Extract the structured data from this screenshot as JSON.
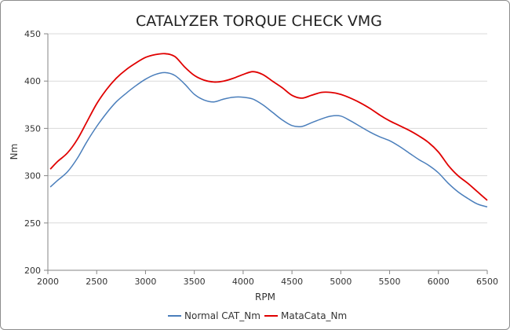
{
  "chart_data": {
    "type": "line",
    "title": "CATALYZER TORQUE CHECK VMG",
    "xlabel": "RPM",
    "ylabel": "Nm",
    "xlim": [
      2000,
      6500
    ],
    "ylim": [
      200,
      450
    ],
    "xticks": [
      2000,
      2500,
      3000,
      3500,
      4000,
      4500,
      5000,
      5500,
      6000,
      6500
    ],
    "yticks": [
      200,
      250,
      300,
      350,
      400,
      450
    ],
    "grid": "horizontal",
    "legend": "bottom",
    "series": [
      {
        "name": "Normal CAT_Nm",
        "color": "#4a7ebb",
        "x": [
          2025,
          2100,
          2200,
          2300,
          2400,
          2500,
          2600,
          2700,
          2800,
          2900,
          3000,
          3100,
          3200,
          3300,
          3400,
          3500,
          3600,
          3700,
          3800,
          3900,
          4000,
          4100,
          4200,
          4300,
          4400,
          4500,
          4600,
          4700,
          4800,
          4900,
          5000,
          5100,
          5200,
          5300,
          5400,
          5500,
          5600,
          5700,
          5800,
          5900,
          6000,
          6100,
          6200,
          6300,
          6400,
          6500
        ],
        "y": [
          288,
          295,
          304,
          318,
          336,
          352,
          366,
          378,
          387,
          395,
          402,
          407,
          409,
          406,
          397,
          386,
          380,
          378,
          381,
          383,
          383,
          381,
          375,
          367,
          359,
          353,
          352,
          356,
          360,
          363,
          363,
          358,
          352,
          346,
          341,
          337,
          331,
          324,
          317,
          311,
          303,
          292,
          283,
          276,
          270,
          267
        ]
      },
      {
        "name": "MataCata_Nm",
        "color": "#e00000",
        "x": [
          2025,
          2100,
          2200,
          2300,
          2400,
          2500,
          2600,
          2700,
          2800,
          2900,
          3000,
          3100,
          3200,
          3300,
          3400,
          3500,
          3600,
          3700,
          3800,
          3900,
          4000,
          4100,
          4200,
          4300,
          4400,
          4500,
          4600,
          4700,
          4800,
          4900,
          5000,
          5100,
          5200,
          5300,
          5400,
          5500,
          5600,
          5700,
          5800,
          5900,
          6000,
          6100,
          6200,
          6300,
          6400,
          6500
        ],
        "y": [
          307,
          315,
          324,
          338,
          357,
          376,
          391,
          403,
          412,
          419,
          425,
          428,
          429,
          426,
          415,
          406,
          401,
          399,
          400,
          403,
          407,
          410,
          407,
          400,
          393,
          385,
          382,
          385,
          388,
          388,
          386,
          382,
          377,
          371,
          364,
          358,
          353,
          348,
          342,
          335,
          325,
          311,
          300,
          292,
          283,
          274
        ]
      }
    ]
  }
}
